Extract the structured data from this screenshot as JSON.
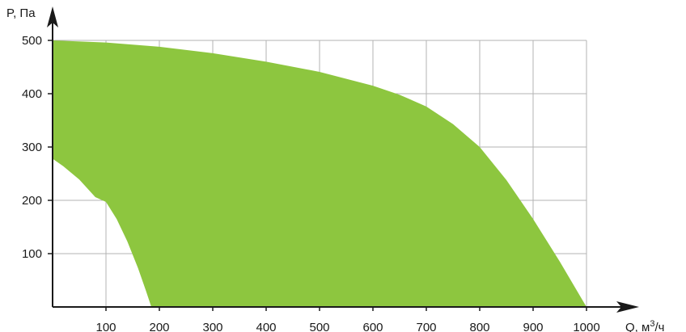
{
  "chart_data": {
    "type": "area",
    "title": "",
    "xlabel": "Q, м",
    "xlabel_superscript": "3",
    "xlabel_suffix": "/ч",
    "ylabel": "P, Па",
    "xlim": [
      0,
      1000
    ],
    "ylim": [
      0,
      500
    ],
    "x_ticks": [
      100,
      200,
      300,
      400,
      500,
      600,
      700,
      800,
      900,
      1000
    ],
    "y_ticks": [
      100,
      200,
      300,
      400,
      500
    ],
    "grid": true,
    "fill_color": "#8dc63f",
    "grid_color": "#b3b3b3",
    "axis_color": "#1a1a1a",
    "series": [
      {
        "role": "upper-boundary",
        "x": [
          0,
          100,
          200,
          300,
          400,
          500,
          600,
          650,
          700,
          750,
          800,
          850,
          900,
          950,
          1000
        ],
        "y": [
          500,
          496,
          488,
          476,
          460,
          441,
          415,
          398,
          376,
          343,
          300,
          238,
          165,
          85,
          0
        ]
      },
      {
        "role": "lower-boundary",
        "x": [
          0,
          20,
          50,
          80,
          100,
          120,
          140,
          160,
          175,
          185
        ],
        "y": [
          278,
          264,
          239,
          206,
          197,
          165,
          123,
          73,
          30,
          0
        ]
      }
    ]
  }
}
